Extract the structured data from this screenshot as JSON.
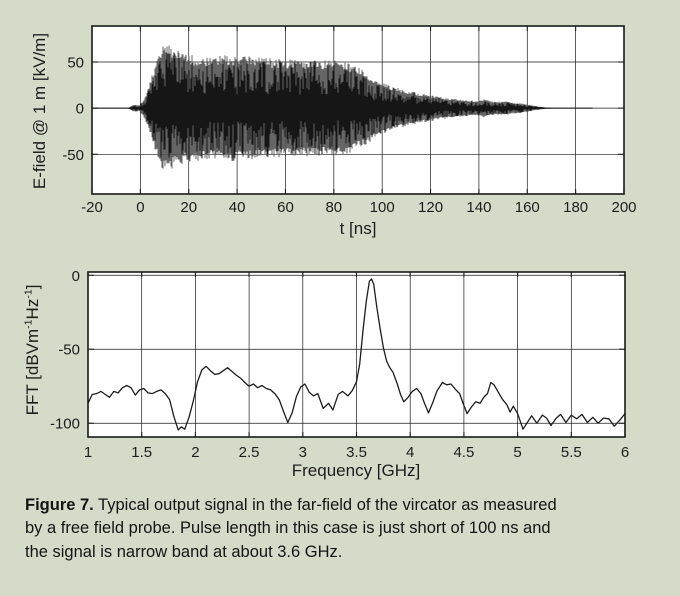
{
  "colors": {
    "panel_background": "#d4dbc8",
    "plot_background": "#ffffff",
    "axis": "#1a1a1a",
    "trace_dark": "#161616",
    "trace_gray": "#545454",
    "fft_line": "#1c1c1c",
    "text": "#1d1d1d"
  },
  "caption": {
    "bold": "Figure 7.",
    "line1_rest": " Typical output signal in the far-field of the vircator as measured",
    "line2": "by a free field probe. Pulse length in this case is just short of 100 ns and",
    "line3": "the signal is narrow band at about 3.6 GHz."
  },
  "chart_data": [
    {
      "type": "line",
      "kind": "time-domain-waveform",
      "title": "",
      "xlabel": "t [ns]",
      "ylabel": "E-field @ 1 m [kV/m]",
      "xlim": [
        -20,
        200
      ],
      "ylim": [
        -93,
        89
      ],
      "xticks": [
        -20,
        0,
        20,
        40,
        60,
        80,
        100,
        120,
        140,
        160,
        180,
        200
      ],
      "yticks": [
        50,
        0,
        -50
      ],
      "grid": true,
      "legend": null,
      "signal_end_ns": 187,
      "noise_seed": 1337,
      "envelope_kv_per_m": [
        [
          -20,
          0.3
        ],
        [
          -5,
          0.4
        ],
        [
          -4,
          2
        ],
        [
          -3,
          3.5
        ],
        [
          -2,
          4
        ],
        [
          -1,
          3.5
        ],
        [
          -0.3,
          3
        ],
        [
          0,
          5
        ],
        [
          1,
          8
        ],
        [
          2,
          13
        ],
        [
          3,
          20
        ],
        [
          4,
          28
        ],
        [
          5,
          38
        ],
        [
          6,
          47
        ],
        [
          7,
          55
        ],
        [
          8,
          62
        ],
        [
          9,
          67
        ],
        [
          10,
          70
        ],
        [
          12,
          70
        ],
        [
          14,
          65
        ],
        [
          16,
          62
        ],
        [
          18,
          60
        ],
        [
          20,
          58
        ],
        [
          24,
          57
        ],
        [
          28,
          56
        ],
        [
          32,
          57
        ],
        [
          36,
          58
        ],
        [
          40,
          57
        ],
        [
          44,
          56
        ],
        [
          48,
          56
        ],
        [
          52,
          55
        ],
        [
          56,
          54
        ],
        [
          60,
          54
        ],
        [
          64,
          53
        ],
        [
          68,
          53
        ],
        [
          72,
          52
        ],
        [
          76,
          52
        ],
        [
          80,
          52
        ],
        [
          84,
          51
        ],
        [
          88,
          47
        ],
        [
          92,
          42
        ],
        [
          96,
          35
        ],
        [
          100,
          28
        ],
        [
          104,
          24
        ],
        [
          108,
          21
        ],
        [
          112,
          18
        ],
        [
          116,
          16
        ],
        [
          120,
          14
        ],
        [
          124,
          12
        ],
        [
          128,
          11
        ],
        [
          132,
          9.5
        ],
        [
          136,
          8.5
        ],
        [
          140,
          8
        ],
        [
          142,
          10
        ],
        [
          145,
          8
        ],
        [
          148,
          7
        ],
        [
          151,
          8
        ],
        [
          154,
          6
        ],
        [
          157,
          5.5
        ],
        [
          160,
          4
        ],
        [
          163,
          2.5
        ],
        [
          166,
          1.2
        ],
        [
          170,
          0.6
        ],
        [
          187,
          0.4
        ]
      ]
    },
    {
      "type": "line",
      "kind": "fft-spectrum",
      "title": "",
      "xlabel": "Frequency [GHz]",
      "ylabel": "FFT [dBVm-1Hz-1]",
      "ylabel_parts": [
        {
          "t": "FFT [dBVm",
          "sup": false
        },
        {
          "t": "-1",
          "sup": true
        },
        {
          "t": "Hz",
          "sup": false
        },
        {
          "t": "-1",
          "sup": true
        },
        {
          "t": "]",
          "sup": false
        }
      ],
      "xlim": [
        1,
        6
      ],
      "ylim": [
        -109.3,
        2.2
      ],
      "xticks": [
        1,
        1.5,
        2,
        2.5,
        3,
        3.5,
        4,
        4.5,
        5,
        5.5,
        6
      ],
      "yticks": [
        0,
        -50,
        -100
      ],
      "grid": true,
      "legend": null,
      "peak_frequency_ghz": 3.63,
      "points": [
        [
          1.0,
          -86.5
        ],
        [
          1.04,
          -80.5
        ],
        [
          1.08,
          -80
        ],
        [
          1.12,
          -78.5
        ],
        [
          1.16,
          -80.5
        ],
        [
          1.2,
          -82.5
        ],
        [
          1.24,
          -78.5
        ],
        [
          1.28,
          -79.5
        ],
        [
          1.32,
          -76
        ],
        [
          1.36,
          -74.5
        ],
        [
          1.4,
          -76
        ],
        [
          1.44,
          -81
        ],
        [
          1.48,
          -77.5
        ],
        [
          1.52,
          -76.5
        ],
        [
          1.56,
          -79.5
        ],
        [
          1.6,
          -80
        ],
        [
          1.64,
          -78.5
        ],
        [
          1.68,
          -77.5
        ],
        [
          1.72,
          -80
        ],
        [
          1.76,
          -84
        ],
        [
          1.8,
          -95.5
        ],
        [
          1.84,
          -104.5
        ],
        [
          1.87,
          -102.5
        ],
        [
          1.9,
          -104
        ],
        [
          1.94,
          -96
        ],
        [
          1.98,
          -85
        ],
        [
          2.02,
          -72
        ],
        [
          2.06,
          -64
        ],
        [
          2.1,
          -61.5
        ],
        [
          2.14,
          -64.5
        ],
        [
          2.18,
          -67
        ],
        [
          2.22,
          -66.5
        ],
        [
          2.26,
          -64.5
        ],
        [
          2.3,
          -62.5
        ],
        [
          2.34,
          -65
        ],
        [
          2.38,
          -67.5
        ],
        [
          2.42,
          -69.5
        ],
        [
          2.46,
          -72.5
        ],
        [
          2.5,
          -75
        ],
        [
          2.54,
          -73.5
        ],
        [
          2.58,
          -76
        ],
        [
          2.62,
          -74.5
        ],
        [
          2.66,
          -76.5
        ],
        [
          2.7,
          -77.5
        ],
        [
          2.74,
          -80
        ],
        [
          2.78,
          -84
        ],
        [
          2.82,
          -92
        ],
        [
          2.86,
          -99.5
        ],
        [
          2.9,
          -93
        ],
        [
          2.94,
          -82
        ],
        [
          2.98,
          -75.5
        ],
        [
          3.02,
          -73.5
        ],
        [
          3.06,
          -79
        ],
        [
          3.1,
          -81.5
        ],
        [
          3.14,
          -80
        ],
        [
          3.19,
          -90
        ],
        [
          3.24,
          -86.5
        ],
        [
          3.28,
          -91
        ],
        [
          3.33,
          -80.5
        ],
        [
          3.37,
          -78.5
        ],
        [
          3.42,
          -81.5
        ],
        [
          3.46,
          -78
        ],
        [
          3.5,
          -72
        ],
        [
          3.53,
          -60
        ],
        [
          3.56,
          -38
        ],
        [
          3.59,
          -18
        ],
        [
          3.62,
          -4
        ],
        [
          3.64,
          -2.5
        ],
        [
          3.66,
          -6
        ],
        [
          3.69,
          -22
        ],
        [
          3.72,
          -36
        ],
        [
          3.75,
          -49
        ],
        [
          3.78,
          -58
        ],
        [
          3.81,
          -62.5
        ],
        [
          3.84,
          -65.5
        ],
        [
          3.88,
          -73.5
        ],
        [
          3.91,
          -80.5
        ],
        [
          3.94,
          -85.5
        ],
        [
          3.98,
          -82.5
        ],
        [
          4.02,
          -78.5
        ],
        [
          4.06,
          -76.5
        ],
        [
          4.1,
          -80
        ],
        [
          4.13,
          -86
        ],
        [
          4.17,
          -93
        ],
        [
          4.21,
          -86
        ],
        [
          4.25,
          -78
        ],
        [
          4.3,
          -72.5
        ],
        [
          4.34,
          -74
        ],
        [
          4.38,
          -73.5
        ],
        [
          4.42,
          -77
        ],
        [
          4.46,
          -80
        ],
        [
          4.5,
          -88
        ],
        [
          4.53,
          -93.5
        ],
        [
          4.57,
          -89
        ],
        [
          4.61,
          -85.5
        ],
        [
          4.65,
          -86.5
        ],
        [
          4.69,
          -82
        ],
        [
          4.72,
          -80
        ],
        [
          4.75,
          -72.5
        ],
        [
          4.78,
          -74
        ],
        [
          4.82,
          -79
        ],
        [
          4.86,
          -84
        ],
        [
          4.9,
          -87.5
        ],
        [
          4.93,
          -92.5
        ],
        [
          4.96,
          -88.5
        ],
        [
          5.0,
          -93.5
        ],
        [
          5.05,
          -104
        ],
        [
          5.09,
          -99.5
        ],
        [
          5.13,
          -95
        ],
        [
          5.18,
          -100
        ],
        [
          5.23,
          -94.5
        ],
        [
          5.27,
          -96.5
        ],
        [
          5.31,
          -101.5
        ],
        [
          5.36,
          -96.5
        ],
        [
          5.4,
          -94
        ],
        [
          5.45,
          -99.5
        ],
        [
          5.5,
          -94.5
        ],
        [
          5.55,
          -97
        ],
        [
          5.6,
          -94
        ],
        [
          5.65,
          -99.5
        ],
        [
          5.7,
          -96
        ],
        [
          5.75,
          -100
        ],
        [
          5.8,
          -96.5
        ],
        [
          5.85,
          -97
        ],
        [
          5.9,
          -102
        ],
        [
          5.95,
          -98
        ],
        [
          6.0,
          -93.5
        ]
      ]
    }
  ]
}
